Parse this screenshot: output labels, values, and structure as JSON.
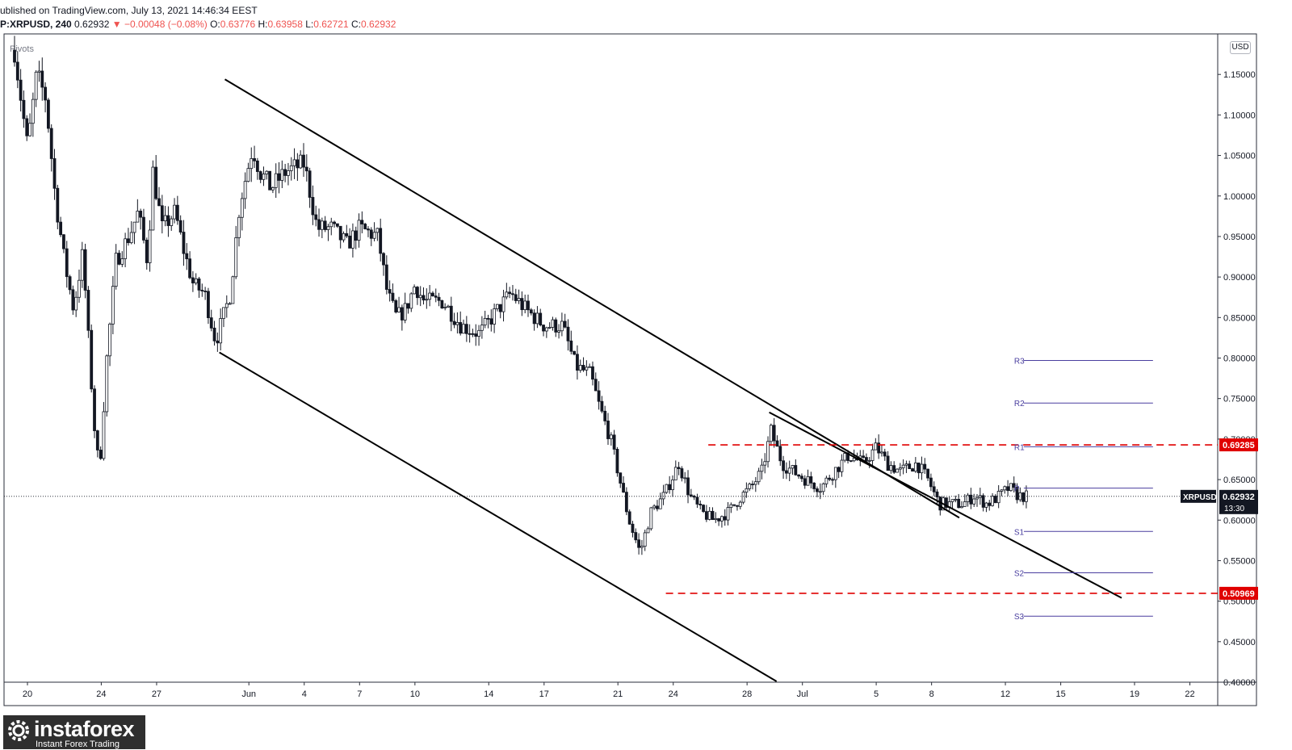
{
  "header": {
    "published": "ublished on TradingView.com, July 13, 2021 14:46:34 EEST",
    "symbol": "P:XRPUSD, 240",
    "last": "0.62932",
    "change": "▼ −0.00048 (−0.08%)",
    "o_label": "O:",
    "o": "0.63776",
    "h_label": "H:",
    "h": "0.63958",
    "l_label": "L:",
    "l": "0.62721",
    "c_label": "C:",
    "c": "0.62932"
  },
  "indicator_label": "Pivots",
  "currency": "USD",
  "logo": {
    "name": "instaforex",
    "tagline": "Instant Forex Trading"
  },
  "colors": {
    "up": "#ffffff",
    "down": "#131722",
    "level": "#e00000",
    "pivot": "#4a3f9f",
    "trend": "#000000"
  },
  "chart_data": {
    "type": "candlestick",
    "symbol": "XRPUSD",
    "interval": "240",
    "ylim": [
      0.4,
      1.2
    ],
    "yticks": [
      0.4,
      0.45,
      0.5,
      0.55,
      0.6,
      0.65,
      0.7,
      0.75,
      0.8,
      0.85,
      0.9,
      0.95,
      1.0,
      1.05,
      1.1,
      1.15
    ],
    "ytick_labels": [
      "0.40000",
      "0.45000",
      "0.50000",
      "0.55000",
      "0.60000",
      "0.65000",
      "0.70000",
      "0.75000",
      "0.80000",
      "0.85000",
      "0.90000",
      "0.95000",
      "1.00000",
      "1.05000",
      "1.10000",
      "1.15000"
    ],
    "xticks": [
      {
        "day": 0,
        "label": "20"
      },
      {
        "day": 4,
        "label": "24"
      },
      {
        "day": 7,
        "label": "27"
      },
      {
        "day": 12,
        "label": "Jun"
      },
      {
        "day": 15,
        "label": "4"
      },
      {
        "day": 18,
        "label": "7"
      },
      {
        "day": 21,
        "label": "10"
      },
      {
        "day": 25,
        "label": "14"
      },
      {
        "day": 28,
        "label": "17"
      },
      {
        "day": 32,
        "label": "21"
      },
      {
        "day": 35,
        "label": "24"
      },
      {
        "day": 39,
        "label": "28"
      },
      {
        "day": 42,
        "label": "Jul"
      },
      {
        "day": 46,
        "label": "5"
      },
      {
        "day": 49,
        "label": "8"
      },
      {
        "day": 53,
        "label": "12"
      },
      {
        "day": 56,
        "label": "15"
      },
      {
        "day": 60,
        "label": "19"
      },
      {
        "day": 63,
        "label": "22"
      }
    ],
    "price_path": [
      [
        -0.7,
        1.18
      ],
      [
        0,
        1.06
      ],
      [
        0.5,
        1.15
      ],
      [
        1,
        1.12
      ],
      [
        1.5,
        1.0
      ],
      [
        2,
        0.92
      ],
      [
        2.5,
        0.86
      ],
      [
        3,
        0.93
      ],
      [
        3.6,
        0.72
      ],
      [
        3.9,
        0.66
      ],
      [
        4.3,
        0.8
      ],
      [
        4.8,
        0.92
      ],
      [
        5.5,
        0.95
      ],
      [
        6,
        0.98
      ],
      [
        6.5,
        0.92
      ],
      [
        6.8,
        1.03
      ],
      [
        7.3,
        0.96
      ],
      [
        8,
        0.98
      ],
      [
        8.5,
        0.93
      ],
      [
        9,
        0.89
      ],
      [
        9.6,
        0.88
      ],
      [
        10.2,
        0.82
      ],
      [
        11,
        0.88
      ],
      [
        11.5,
        0.99
      ],
      [
        12.2,
        1.06
      ],
      [
        12.6,
        1.03
      ],
      [
        13.2,
        1.01
      ],
      [
        14,
        1.03
      ],
      [
        15,
        1.04
      ],
      [
        15.7,
        0.96
      ],
      [
        16.5,
        0.96
      ],
      [
        17.3,
        0.94
      ],
      [
        18,
        0.96
      ],
      [
        19,
        0.95
      ],
      [
        19.5,
        0.88
      ],
      [
        20,
        0.85
      ],
      [
        20.5,
        0.86
      ],
      [
        21,
        0.89
      ],
      [
        21.5,
        0.87
      ],
      [
        22.5,
        0.87
      ],
      [
        23.5,
        0.84
      ],
      [
        24.5,
        0.83
      ],
      [
        25.5,
        0.86
      ],
      [
        26.2,
        0.88
      ],
      [
        27,
        0.86
      ],
      [
        28,
        0.84
      ],
      [
        29,
        0.84
      ],
      [
        29.7,
        0.79
      ],
      [
        30.5,
        0.78
      ],
      [
        31,
        0.74
      ],
      [
        31.6,
        0.7
      ],
      [
        32.1,
        0.65
      ],
      [
        32.6,
        0.6
      ],
      [
        33.2,
        0.56
      ],
      [
        33.8,
        0.61
      ],
      [
        34.5,
        0.63
      ],
      [
        35.3,
        0.67
      ],
      [
        35.9,
        0.63
      ],
      [
        36.5,
        0.61
      ],
      [
        37.2,
        0.6
      ],
      [
        38,
        0.61
      ],
      [
        38.7,
        0.63
      ],
      [
        39.2,
        0.64
      ],
      [
        39.8,
        0.66
      ],
      [
        40.3,
        0.71
      ],
      [
        40.9,
        0.67
      ],
      [
        41.5,
        0.66
      ],
      [
        42.2,
        0.65
      ],
      [
        43,
        0.64
      ],
      [
        43.7,
        0.66
      ],
      [
        44.5,
        0.68
      ],
      [
        45.3,
        0.67
      ],
      [
        46,
        0.69
      ],
      [
        46.6,
        0.67
      ],
      [
        47.3,
        0.66
      ],
      [
        48.2,
        0.67
      ],
      [
        48.8,
        0.65
      ],
      [
        49.4,
        0.62
      ],
      [
        50.1,
        0.62
      ],
      [
        50.7,
        0.62
      ],
      [
        51.3,
        0.63
      ],
      [
        52,
        0.62
      ],
      [
        52.7,
        0.63
      ],
      [
        53.2,
        0.64
      ],
      [
        53.7,
        0.63
      ],
      [
        54.2,
        0.629
      ]
    ],
    "trendlines": [
      {
        "name": "channel-upper",
        "p1": [
          10.7,
          1.144
        ],
        "p2": [
          50.5,
          0.603
        ]
      },
      {
        "name": "channel-lower",
        "p1": [
          10.4,
          0.807
        ],
        "p2": [
          40.6,
          0.401
        ]
      },
      {
        "name": "breakout-trend",
        "p1": [
          40.2,
          0.733
        ],
        "p2": [
          59.3,
          0.504
        ]
      }
    ],
    "levels": [
      {
        "value": 0.69285,
        "label": "0.69285",
        "from_day": 36.9
      },
      {
        "value": 0.50969,
        "label": "0.50969",
        "from_day": 34.6
      }
    ],
    "pivots": [
      {
        "name": "R3",
        "value": 0.797
      },
      {
        "name": "R2",
        "value": 0.7445
      },
      {
        "name": "R1",
        "value": 0.6905
      },
      {
        "name": "P",
        "value": 0.6395
      },
      {
        "name": "S1",
        "value": 0.586
      },
      {
        "name": "S2",
        "value": 0.535
      },
      {
        "name": "S3",
        "value": 0.4815
      }
    ],
    "pivot_range_days": [
      54.0,
      61.0
    ],
    "last_price": {
      "value": 0.62932,
      "label": "0.62932",
      "symbol": "XRPUSD",
      "countdown": "13:30"
    }
  }
}
